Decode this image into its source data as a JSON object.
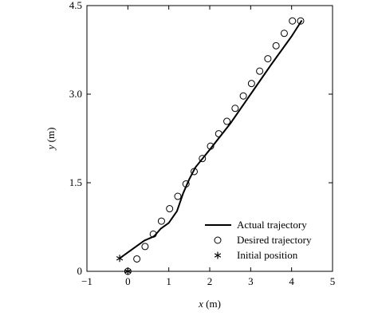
{
  "chart_data": {
    "type": "line",
    "xlabel": {
      "var": "x",
      "unit": " (m)"
    },
    "ylabel": {
      "var": "y",
      "unit": " (m)"
    },
    "xlim": [
      -1,
      5
    ],
    "ylim": [
      0,
      4.5
    ],
    "xticks": [
      "−1",
      "0",
      "1",
      "2",
      "3",
      "4",
      "5"
    ],
    "xtick_values": [
      -1,
      0,
      1,
      2,
      3,
      4,
      5
    ],
    "yticks": [
      "0",
      "1.5",
      "3.0",
      "4.5"
    ],
    "ytick_values": [
      0,
      1.5,
      3.0,
      4.5
    ],
    "grid": false,
    "legend_position": "bottom-right",
    "series": [
      {
        "name": "Actual trajectory",
        "style": "line",
        "x": [
          -0.2,
          0.0,
          0.2,
          0.4,
          0.6,
          0.65,
          0.8,
          1.0,
          1.2,
          1.35,
          1.5,
          1.65,
          2.0,
          2.5,
          3.0,
          3.5,
          4.0,
          4.25
        ],
        "y": [
          0.22,
          0.32,
          0.42,
          0.52,
          0.58,
          0.6,
          0.72,
          0.82,
          1.02,
          1.32,
          1.56,
          1.76,
          2.06,
          2.5,
          3.0,
          3.5,
          3.98,
          4.25
        ]
      },
      {
        "name": "Desired trajectory",
        "style": "circle",
        "x": [
          0.0,
          0.22,
          0.42,
          0.62,
          0.82,
          1.02,
          1.22,
          1.42,
          1.62,
          1.82,
          2.02,
          2.22,
          2.42,
          2.62,
          2.82,
          3.02,
          3.22,
          3.42,
          3.62,
          3.82,
          4.02,
          4.22
        ],
        "y": [
          0.0,
          0.21,
          0.42,
          0.63,
          0.85,
          1.06,
          1.27,
          1.48,
          1.69,
          1.91,
          2.12,
          2.33,
          2.54,
          2.76,
          2.97,
          3.18,
          3.39,
          3.6,
          3.82,
          4.03,
          4.24,
          4.24
        ]
      },
      {
        "name": "Initial position",
        "style": "star",
        "x": [
          -0.2
        ],
        "y": [
          0.22
        ]
      }
    ],
    "extra_marker": {
      "style": "star",
      "x": 0.0,
      "y": 0.0
    }
  }
}
